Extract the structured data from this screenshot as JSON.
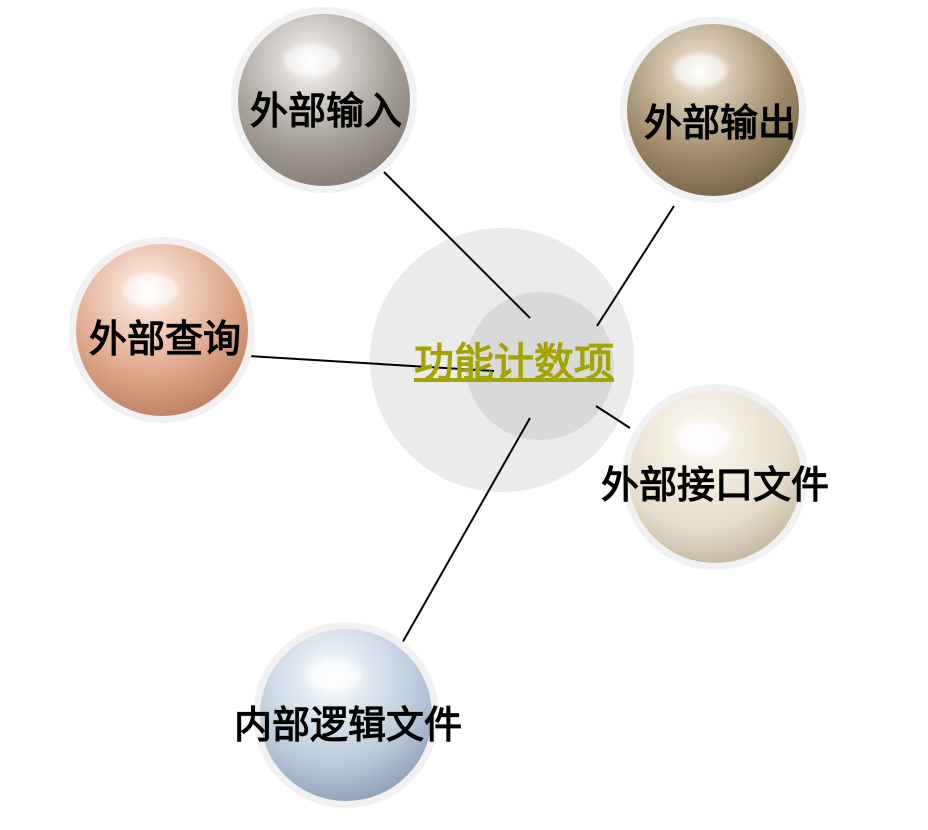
{
  "center": {
    "label": "功能计数项",
    "color": "#a4a400"
  },
  "nodes": [
    {
      "id": "external-input",
      "label": "外部输入",
      "color": "#a59f98"
    },
    {
      "id": "external-output",
      "label": "外部输出",
      "color": "#a18d6c"
    },
    {
      "id": "external-inquiry",
      "label": "外部查询",
      "color": "#dea68a"
    },
    {
      "id": "external-interface-file",
      "label": "外部接口文件",
      "color": "#e5dccb"
    },
    {
      "id": "internal-logical-file",
      "label": "内部逻辑文件",
      "color": "#b8c8d8"
    }
  ]
}
